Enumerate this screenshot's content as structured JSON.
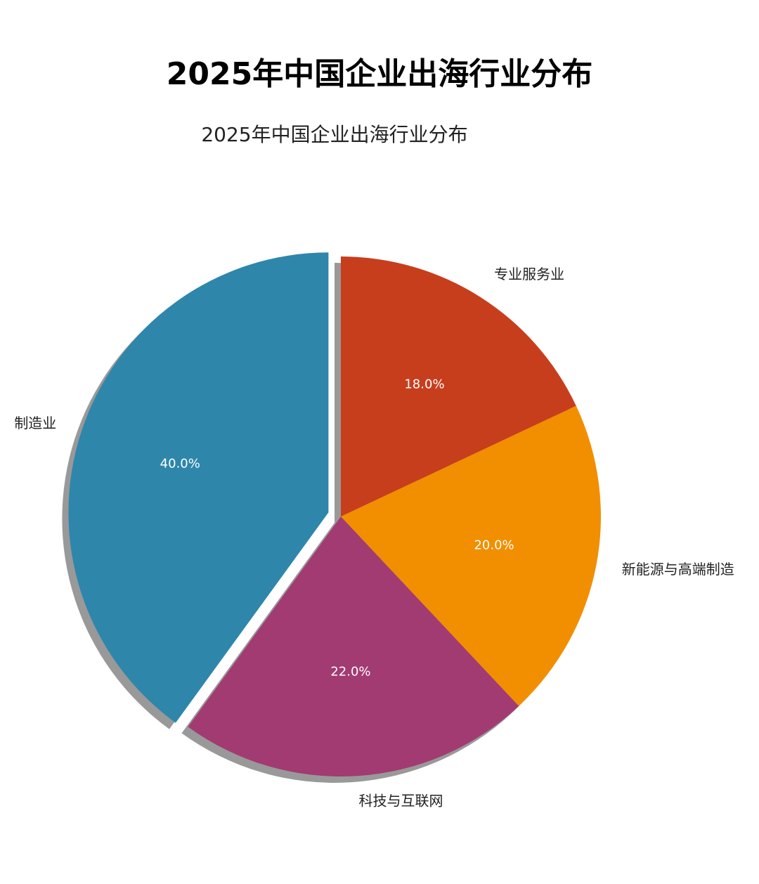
{
  "heading": "2025年中国企业出海行业分布",
  "chart_data": {
    "type": "pie",
    "title": "2025年中国企业出海行业分布",
    "categories": [
      "制造业",
      "科技与互联网",
      "新能源与高端制造",
      "专业服务业"
    ],
    "values": [
      40,
      22,
      20,
      18
    ],
    "value_labels": [
      "40.0%",
      "22.0%",
      "20.0%",
      "18.0%"
    ],
    "colors": [
      "#2E86AB",
      "#A23B72",
      "#F18F01",
      "#C73E1D"
    ],
    "explode": [
      0.05,
      0,
      0,
      0
    ],
    "start_angle": 90,
    "shadow": true
  }
}
